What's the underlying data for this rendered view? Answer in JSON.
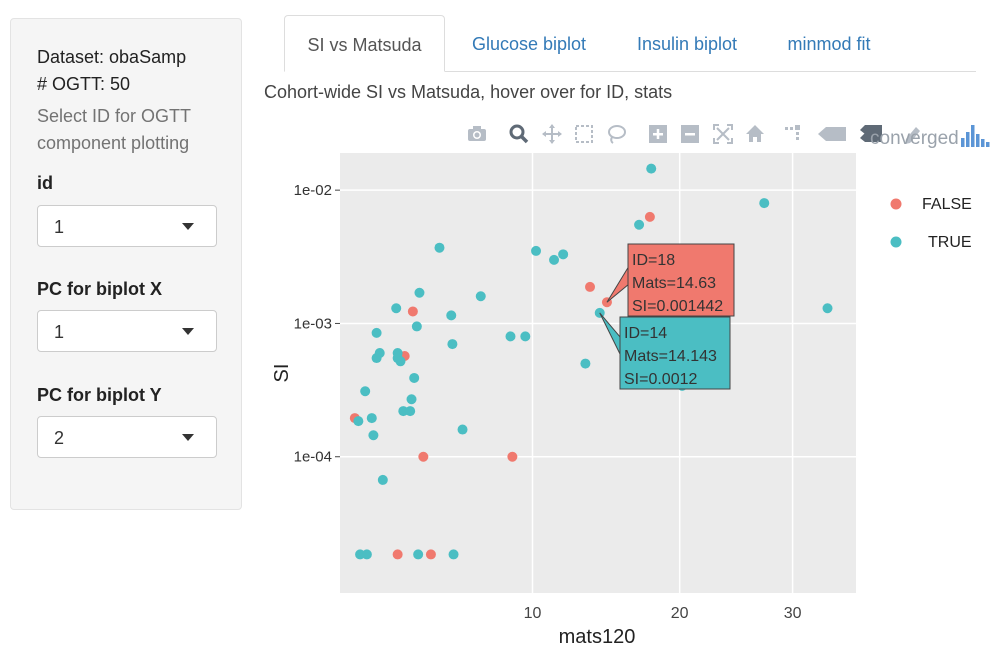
{
  "sidebar": {
    "dataset_line": "Dataset: obaSamp",
    "ogtt_line": "# OGTT: 50",
    "help_line1": "Select ID for OGTT",
    "help_line2": "component plotting",
    "id_label": "id",
    "id_value": "1",
    "pcx_label": "PC for biplot X",
    "pcx_value": "1",
    "pcy_label": "PC for biplot Y",
    "pcy_value": "2"
  },
  "tabs": [
    {
      "label": "SI vs Matsuda",
      "active": true
    },
    {
      "label": "Glucose biplot",
      "active": false
    },
    {
      "label": "Insulin biplot",
      "active": false
    },
    {
      "label": "minmod fit",
      "active": false
    }
  ],
  "caption": "Cohort-wide SI vs Matsuda, hover over for ID, stats",
  "modebar": {
    "icons": [
      "camera-icon",
      "zoom-icon",
      "pan-icon",
      "box-select-icon",
      "lasso-icon",
      "zoom-in-icon",
      "zoom-out-icon",
      "autoscale-icon",
      "reset-axes-icon",
      "spike-lines-icon",
      "hover-closest-icon",
      "hover-compare-icon",
      "edit-icon",
      "plotly-logo-icon"
    ],
    "overlap_text": "converged"
  },
  "colors": {
    "false": "#f0796e",
    "true": "#4bbec3",
    "plot_bg": "#ebebeb",
    "accent": "#337ab7"
  },
  "chart_data": {
    "type": "scatter",
    "xlabel": "mats120",
    "ylabel": "SI",
    "x_scale": "sqrt",
    "y_scale": "log",
    "xlim": [
      2.1,
      36.5
    ],
    "ylim": [
      9.5e-06,
      0.019
    ],
    "x_ticks": [
      {
        "value": 10,
        "label": "10"
      },
      {
        "value": 20,
        "label": "20"
      },
      {
        "value": 30,
        "label": "30"
      }
    ],
    "y_ticks": [
      {
        "value": 0.01,
        "label": "1e-02"
      },
      {
        "value": 0.001,
        "label": "1e-03"
      },
      {
        "value": 0.0001,
        "label": "1e-04"
      }
    ],
    "legend": {
      "position": "right",
      "entries": [
        {
          "name": "FALSE",
          "color": "#f0796e"
        },
        {
          "name": "TRUE",
          "color": "#4bbec3"
        }
      ]
    },
    "series": [
      {
        "name": "FALSE",
        "color": "#f0796e",
        "points": [
          [
            2.5,
            0.000195
          ],
          [
            4.4,
            0.00123
          ],
          [
            4.1,
            0.00057
          ],
          [
            4.8,
            0.0001
          ],
          [
            8.9,
            0.0001
          ],
          [
            13.5,
            0.00188
          ],
          [
            14.63,
            0.001442
          ],
          [
            17.7,
            0.0063
          ],
          [
            3.85,
            1.85e-05
          ],
          [
            5.1,
            1.85e-05
          ]
        ]
      },
      {
        "name": "TRUE",
        "color": "#4bbec3",
        "points": [
          [
            2.6,
            0.000185
          ],
          [
            2.8,
            0.00031
          ],
          [
            3.0,
            0.000195
          ],
          [
            3.05,
            0.000145
          ],
          [
            3.15,
            0.00085
          ],
          [
            3.15,
            0.00055
          ],
          [
            3.25,
            0.0006
          ],
          [
            3.35,
            6.7e-05
          ],
          [
            3.8,
            0.0013
          ],
          [
            3.85,
            0.0006
          ],
          [
            3.85,
            0.00055
          ],
          [
            3.95,
            0.00052
          ],
          [
            4.05,
            0.00022
          ],
          [
            4.3,
            0.00022
          ],
          [
            4.35,
            0.00027
          ],
          [
            4.45,
            0.00039
          ],
          [
            4.55,
            0.00095
          ],
          [
            4.65,
            0.0017
          ],
          [
            5.45,
            0.0037
          ],
          [
            5.95,
            0.00115
          ],
          [
            6.0,
            0.0007
          ],
          [
            6.45,
            0.00016
          ],
          [
            7.3,
            0.0016
          ],
          [
            8.8,
            0.0008
          ],
          [
            9.6,
            0.0008
          ],
          [
            10.2,
            0.0035
          ],
          [
            11.25,
            0.003
          ],
          [
            11.8,
            0.0033
          ],
          [
            13.2,
            0.0005
          ],
          [
            14.143,
            0.0012
          ],
          [
            16.9,
            0.0055
          ],
          [
            17.8,
            0.0145
          ],
          [
            20.2,
            0.00034
          ],
          [
            27.3,
            0.008
          ],
          [
            33.5,
            0.0013
          ],
          [
            2.65,
            1.85e-05
          ],
          [
            2.85,
            1.85e-05
          ],
          [
            4.6,
            1.85e-05
          ],
          [
            6.05,
            1.85e-05
          ]
        ]
      }
    ],
    "tooltips": [
      {
        "color": "#f0796e",
        "series": "FALSE",
        "point": [
          14.63,
          0.001442
        ],
        "lines": [
          "ID=18",
          "Mats=14.63",
          "SI=0.001442"
        ]
      },
      {
        "color": "#4bbec3",
        "series": "TRUE",
        "point": [
          14.143,
          0.0012
        ],
        "lines": [
          "ID=14",
          "Mats=14.143",
          "SI=0.0012"
        ]
      }
    ]
  }
}
